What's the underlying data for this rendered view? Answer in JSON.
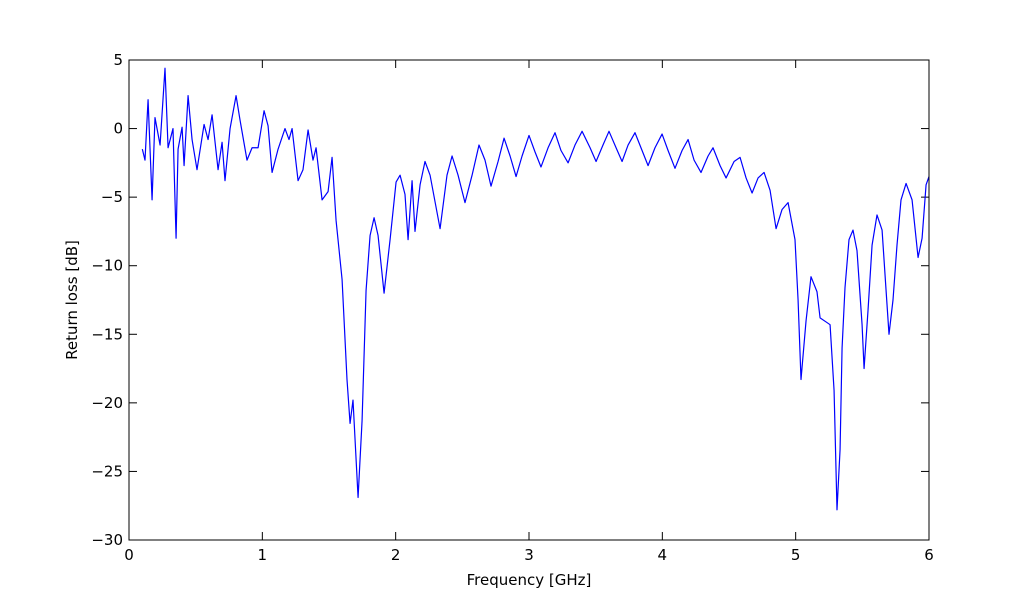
{
  "chart_data": {
    "type": "line",
    "xlabel": "Frequency [GHz]",
    "ylabel": "Return loss [dB]",
    "x": [
      0.1,
      0.12,
      0.143,
      0.173,
      0.195,
      0.233,
      0.27,
      0.293,
      0.33,
      0.353,
      0.368,
      0.398,
      0.413,
      0.443,
      0.473,
      0.51,
      0.563,
      0.593,
      0.623,
      0.668,
      0.698,
      0.72,
      0.758,
      0.803,
      0.833,
      0.885,
      0.923,
      0.968,
      1.013,
      1.043,
      1.073,
      1.118,
      1.17,
      1.2,
      1.223,
      1.268,
      1.305,
      1.343,
      1.38,
      1.403,
      1.448,
      1.493,
      1.523,
      1.553,
      1.598,
      1.635,
      1.658,
      1.68,
      1.718,
      1.748,
      1.778,
      1.808,
      1.838,
      1.868,
      1.913,
      1.958,
      2.003,
      2.033,
      2.07,
      2.093,
      2.123,
      2.145,
      2.183,
      2.22,
      2.258,
      2.333,
      2.385,
      2.423,
      2.468,
      2.52,
      2.573,
      2.625,
      2.67,
      2.715,
      2.768,
      2.813,
      2.858,
      2.903,
      2.948,
      3.0,
      3.045,
      3.09,
      3.143,
      3.195,
      3.24,
      3.293,
      3.345,
      3.398,
      3.458,
      3.503,
      3.555,
      3.6,
      3.653,
      3.698,
      3.743,
      3.795,
      3.848,
      3.893,
      3.945,
      3.998,
      4.043,
      4.095,
      4.148,
      4.193,
      4.238,
      4.29,
      4.343,
      4.38,
      4.433,
      4.478,
      4.538,
      4.583,
      4.628,
      4.673,
      4.718,
      4.763,
      4.808,
      4.853,
      4.898,
      4.943,
      4.995,
      5.018,
      5.04,
      5.078,
      5.115,
      5.16,
      5.183,
      5.228,
      5.258,
      5.288,
      5.31,
      5.333,
      5.348,
      5.37,
      5.4,
      5.43,
      5.46,
      5.498,
      5.513,
      5.543,
      5.573,
      5.61,
      5.648,
      5.678,
      5.7,
      5.73,
      5.76,
      5.79,
      5.828,
      5.873,
      5.918,
      5.948,
      5.978,
      6.0
    ],
    "series": [
      {
        "name": "Return loss",
        "color": "#0000ff",
        "values": [
          -1.5,
          -2.3,
          2.1,
          -5.2,
          0.8,
          -1.2,
          4.4,
          -1.4,
          0,
          -8,
          -1.5,
          0.1,
          -2.7,
          2.4,
          -0.8,
          -3,
          0.3,
          -0.8,
          1.0,
          -3.0,
          -1,
          -3.8,
          0,
          2.4,
          0.6,
          -2.3,
          -1.4,
          -1.4,
          1.3,
          0.2,
          -3.2,
          -1.5,
          0,
          -0.8,
          0,
          -3.8,
          -3,
          -0.1,
          -2.3,
          -1.4,
          -5.2,
          -4.6,
          -2.1,
          -6.7,
          -11,
          -18.3,
          -21.5,
          -19.8,
          -26.9,
          -21.3,
          -11.8,
          -7.8,
          -6.5,
          -7.8,
          -12,
          -8.1,
          -3.9,
          -3.4,
          -4.8,
          -8.1,
          -3.8,
          -7.5,
          -4.1,
          -2.4,
          -3.4,
          -7.3,
          -3.4,
          -2,
          -3.4,
          -5.4,
          -3.4,
          -1.2,
          -2.3,
          -4.2,
          -2.4,
          -0.7,
          -2,
          -3.5,
          -2,
          -0.5,
          -1.7,
          -2.8,
          -1.4,
          -0.3,
          -1.6,
          -2.5,
          -1.2,
          -0.2,
          -1.4,
          -2.4,
          -1.2,
          -0.2,
          -1.4,
          -2.4,
          -1.2,
          -0.3,
          -1.6,
          -2.7,
          -1.4,
          -0.4,
          -1.6,
          -2.9,
          -1.6,
          -0.8,
          -2.3,
          -3.2,
          -2,
          -1.4,
          -2.7,
          -3.6,
          -2.4,
          -2.1,
          -3.6,
          -4.7,
          -3.6,
          -3.2,
          -4.5,
          -7.3,
          -5.9,
          -5.4,
          -8.1,
          -12.5,
          -18.3,
          -14,
          -10.8,
          -11.9,
          -13.8,
          -14.1,
          -14.3,
          -19.1,
          -27.8,
          -23.4,
          -16,
          -11.6,
          -8.1,
          -7.4,
          -8.9,
          -14.3,
          -17.5,
          -13.2,
          -8.5,
          -6.3,
          -7.4,
          -11.8,
          -15,
          -12.5,
          -8.5,
          -5.2,
          -4,
          -5.2,
          -9.4,
          -8,
          -4.1,
          -3.5
        ]
      }
    ],
    "xlim": [
      0,
      6
    ],
    "xticks": [
      0,
      1,
      2,
      3,
      4,
      5,
      6
    ],
    "ylim": [
      -30,
      5
    ],
    "yticks": [
      {
        "value": -30,
        "label": "−30"
      },
      {
        "value": -25,
        "label": "−25"
      },
      {
        "value": -20,
        "label": "−20"
      },
      {
        "value": -15,
        "label": "−15"
      },
      {
        "value": -10,
        "label": "−10"
      },
      {
        "value": -5,
        "label": "−5"
      },
      0,
      5
    ],
    "grid": false
  }
}
